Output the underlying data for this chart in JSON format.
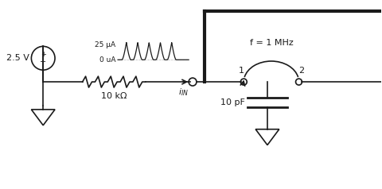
{
  "bg_color": "#ffffff",
  "line_color": "#1a1a1a",
  "figsize": [
    4.8,
    2.38
  ],
  "dpi": 100,
  "voltage_label": "2.5 V",
  "resistor_label": "10 kΩ",
  "cap_label": "10 pF",
  "freq_label": "f = 1 MHz",
  "node1_label": "1",
  "node2_label": "2",
  "label_25uA": "25 μA",
  "label_0uA": "0 uA"
}
